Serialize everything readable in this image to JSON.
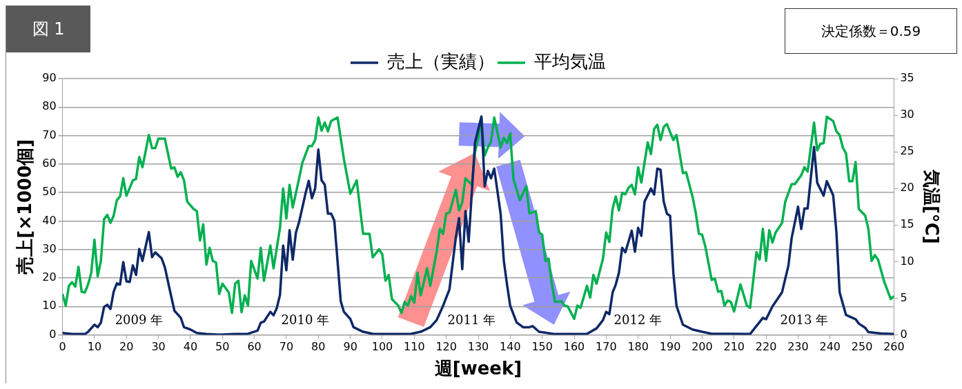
{
  "chart_data": {
    "type": "line",
    "title": "図 1",
    "xlabel": "週[week]",
    "ylabel": "売上[×1000個]",
    "y2label": "気温[°C]",
    "annotations": [
      "決定係数＝0.59",
      "2009 年",
      "2010 年",
      "2011 年",
      "2012 年",
      "2013 年"
    ],
    "xlim": [
      0,
      260
    ],
    "xticks": [
      0,
      10,
      20,
      30,
      40,
      50,
      60,
      70,
      80,
      90,
      100,
      110,
      120,
      130,
      140,
      150,
      160,
      170,
      180,
      190,
      200,
      210,
      220,
      230,
      240,
      250,
      260
    ],
    "ylim": [
      0,
      90
    ],
    "yticks": [
      0,
      10,
      20,
      30,
      40,
      50,
      60,
      70,
      80,
      90
    ],
    "y2lim": [
      0,
      35
    ],
    "y2ticks": [
      0,
      5,
      10,
      15,
      20,
      25,
      30,
      35
    ],
    "grid": "y",
    "legend": "top",
    "marker": "none",
    "line_style": "solid",
    "series": [
      {
        "name": "売上（実績）",
        "color": "#0e2867",
        "x": [
          0,
          3,
          7,
          8,
          10,
          11,
          12,
          13,
          14,
          15,
          16,
          17,
          18,
          19,
          20,
          21,
          22,
          23,
          24,
          25,
          27,
          28,
          29,
          31,
          32,
          34,
          35,
          37,
          38,
          40,
          42,
          45,
          49,
          54,
          58,
          61,
          62,
          63,
          65,
          66,
          67,
          68,
          69,
          70,
          71,
          72,
          73,
          74,
          76,
          77,
          78,
          79,
          80,
          81,
          82,
          83,
          84,
          85,
          87,
          88,
          90,
          91,
          94,
          97,
          103,
          109,
          112,
          115,
          117,
          119,
          121,
          122,
          123,
          124,
          125,
          126,
          127,
          129,
          131,
          132,
          133,
          134,
          135,
          137,
          138,
          139,
          140,
          142,
          144,
          146,
          147,
          149,
          154,
          160,
          164,
          167,
          169,
          170,
          171,
          172,
          173,
          174,
          175,
          176,
          178,
          179,
          180,
          181,
          182,
          184,
          185,
          186,
          187,
          188,
          189,
          190,
          191,
          192,
          194,
          197,
          200,
          203,
          209,
          215,
          219,
          220,
          222,
          225,
          227,
          228,
          230,
          231,
          232,
          233,
          235,
          236,
          238,
          239,
          241,
          242,
          243,
          245,
          248,
          249,
          251,
          252,
          256,
          260
        ],
        "values": [
          0.7,
          0.3,
          0.3,
          1.1,
          3.6,
          2.7,
          4.3,
          9.8,
          10.6,
          9.1,
          15.2,
          18.1,
          17.7,
          25.6,
          18.8,
          18.6,
          24.4,
          21.1,
          30.2,
          26,
          36.1,
          27.3,
          29,
          26.9,
          23.8,
          13.5,
          8.5,
          6,
          2.7,
          1.9,
          0.7,
          0.3,
          0.1,
          0.3,
          0.4,
          1.5,
          4.3,
          4.7,
          8.1,
          6.9,
          9.4,
          14,
          31.4,
          22.7,
          36.8,
          26.4,
          36,
          39.7,
          49.7,
          54.1,
          48,
          51.4,
          65.1,
          54.3,
          52.8,
          42.6,
          42.6,
          40.1,
          11.9,
          8.1,
          5.6,
          2.7,
          1.1,
          0.4,
          0.3,
          0.4,
          1.1,
          2.7,
          5.2,
          10.2,
          16,
          25.2,
          34.3,
          41,
          23.1,
          43.5,
          32.7,
          67.6,
          76.7,
          52.2,
          57.6,
          55,
          58.4,
          42.6,
          26,
          17.7,
          10.2,
          4.4,
          2.7,
          2.7,
          3.1,
          1.1,
          0.3,
          0.3,
          0.4,
          2.3,
          5.2,
          8.1,
          7.3,
          14.8,
          17.7,
          21.9,
          30.6,
          29,
          36.6,
          29.2,
          37.6,
          34.8,
          46.8,
          51.4,
          49.3,
          58.4,
          58,
          46.8,
          42.6,
          41.8,
          21.9,
          10.2,
          3.6,
          1.9,
          1.1,
          0.4,
          0.4,
          0.3,
          6,
          5.5,
          10,
          15,
          24.4,
          34,
          45,
          37.2,
          44.4,
          44.4,
          66,
          53.4,
          48.9,
          54,
          49,
          36,
          15,
          7,
          5.5,
          4,
          2.5,
          1,
          0.5,
          0.3
        ]
      },
      {
        "name": "平均気温",
        "color": "#00b04f",
        "axis": "y2",
        "x": [
          0,
          1,
          2,
          3,
          4,
          5,
          6,
          7,
          8,
          9,
          10,
          11,
          12,
          13,
          14,
          15,
          16,
          17,
          18,
          19,
          20,
          22,
          23,
          24,
          25,
          27,
          28,
          29,
          30,
          32,
          34,
          35,
          36,
          37,
          38,
          39,
          41,
          42,
          43,
          44,
          45,
          46,
          47,
          48,
          49,
          50,
          52,
          53,
          54,
          55,
          56,
          57,
          58,
          59,
          61,
          62,
          63,
          65,
          66,
          68,
          69,
          70,
          71,
          72,
          74,
          75,
          77,
          78,
          79,
          80,
          81,
          82,
          83,
          84,
          86,
          88,
          90,
          92,
          94,
          96,
          97,
          99,
          100,
          101,
          102,
          103,
          105,
          106,
          107,
          108,
          109,
          110,
          111,
          112,
          114,
          115,
          117,
          118,
          119,
          120,
          121,
          123,
          124,
          125,
          126,
          128,
          129,
          130,
          131,
          132,
          133,
          134,
          135,
          137,
          138,
          139,
          140,
          141,
          143,
          145,
          146,
          148,
          149,
          150,
          151,
          152,
          153,
          154,
          156,
          157,
          158,
          160,
          161,
          162,
          164,
          165,
          166,
          167,
          169,
          170,
          171,
          172,
          173,
          174,
          175,
          176,
          177,
          178,
          179,
          180,
          181,
          183,
          184,
          185,
          186,
          187,
          188,
          189,
          191,
          192,
          194,
          195,
          197,
          198,
          199,
          200,
          201,
          203,
          204,
          205,
          206,
          207,
          208,
          209,
          210,
          212,
          214,
          215,
          217,
          218,
          219,
          220,
          221,
          222,
          223,
          225,
          226,
          228,
          229,
          231,
          232,
          233,
          235,
          236,
          237,
          238,
          239,
          241,
          242,
          243,
          244,
          245,
          246,
          247,
          248,
          249,
          251,
          252,
          253,
          254,
          255,
          257,
          259,
          260
        ],
        "values": [
          5.6,
          4,
          6.7,
          7.2,
          6.6,
          9.3,
          5.9,
          5.8,
          6.9,
          8.5,
          13,
          8,
          10.1,
          15.8,
          16.4,
          15.3,
          16.3,
          18.4,
          18.9,
          21.4,
          19,
          21.1,
          21.3,
          24.3,
          22.9,
          27.3,
          25.5,
          25.5,
          26.8,
          26.8,
          22.7,
          22.9,
          21.6,
          22.2,
          21.1,
          18.2,
          17.2,
          16.9,
          12.9,
          15.1,
          9.6,
          11.9,
          10.1,
          9.9,
          5.6,
          7,
          5.8,
          3,
          7,
          7.4,
          3.1,
          5.4,
          4,
          10.1,
          7.7,
          11.9,
          7.4,
          12.2,
          9.1,
          14.6,
          20,
          15.9,
          20.5,
          17.4,
          21.4,
          23.5,
          25.8,
          25.8,
          26.6,
          29.7,
          27.9,
          29,
          27.8,
          29.2,
          29.7,
          24,
          19.3,
          21.1,
          13.8,
          13.8,
          10.6,
          11.7,
          11,
          7.4,
          8.2,
          4.9,
          4,
          3,
          4.5,
          4,
          5.3,
          4.4,
          8.5,
          5.4,
          9.1,
          6.7,
          11.4,
          14.5,
          13.8,
          16.6,
          16.7,
          19.8,
          17,
          18.1,
          21.4,
          20.5,
          25,
          26.9,
          29.5,
          24.5,
          25.6,
          26.4,
          29.7,
          25.6,
          26.9,
          26.2,
          27.5,
          21.3,
          18.4,
          20.3,
          16.6,
          16.9,
          14,
          13.7,
          10.1,
          10.4,
          7,
          4.5,
          4.6,
          4,
          3.9,
          2.2,
          4,
          3.7,
          6.7,
          5.1,
          8.2,
          7,
          10.4,
          14,
          12.7,
          17.2,
          18.9,
          17,
          19.4,
          19.2,
          20.1,
          20.5,
          19.2,
          22.9,
          20.8,
          26.3,
          24.7,
          28.1,
          28.7,
          26.6,
          28.4,
          28.8,
          26.6,
          27.3,
          22.1,
          22.2,
          18.9,
          16.7,
          13.8,
          13.7,
          12.1,
          7.5,
          7.7,
          5.9,
          6,
          4,
          4.7,
          4.5,
          3.2,
          6.9,
          4,
          3.7,
          11.3,
          10.3,
          14.5,
          10.1,
          14.3,
          12.6,
          14,
          15.3,
          18.2,
          20.6,
          20.6,
          21.8,
          22.9,
          22.3,
          29,
          25.2,
          26.1,
          26.2,
          29.8,
          29.2,
          27.8,
          27.3,
          25.6,
          24.8,
          21,
          21,
          23.6,
          17.2,
          16.3,
          14.5,
          10.1,
          10.9,
          10.3,
          7.2,
          4.9,
          5.3
        ]
      }
    ]
  }
}
